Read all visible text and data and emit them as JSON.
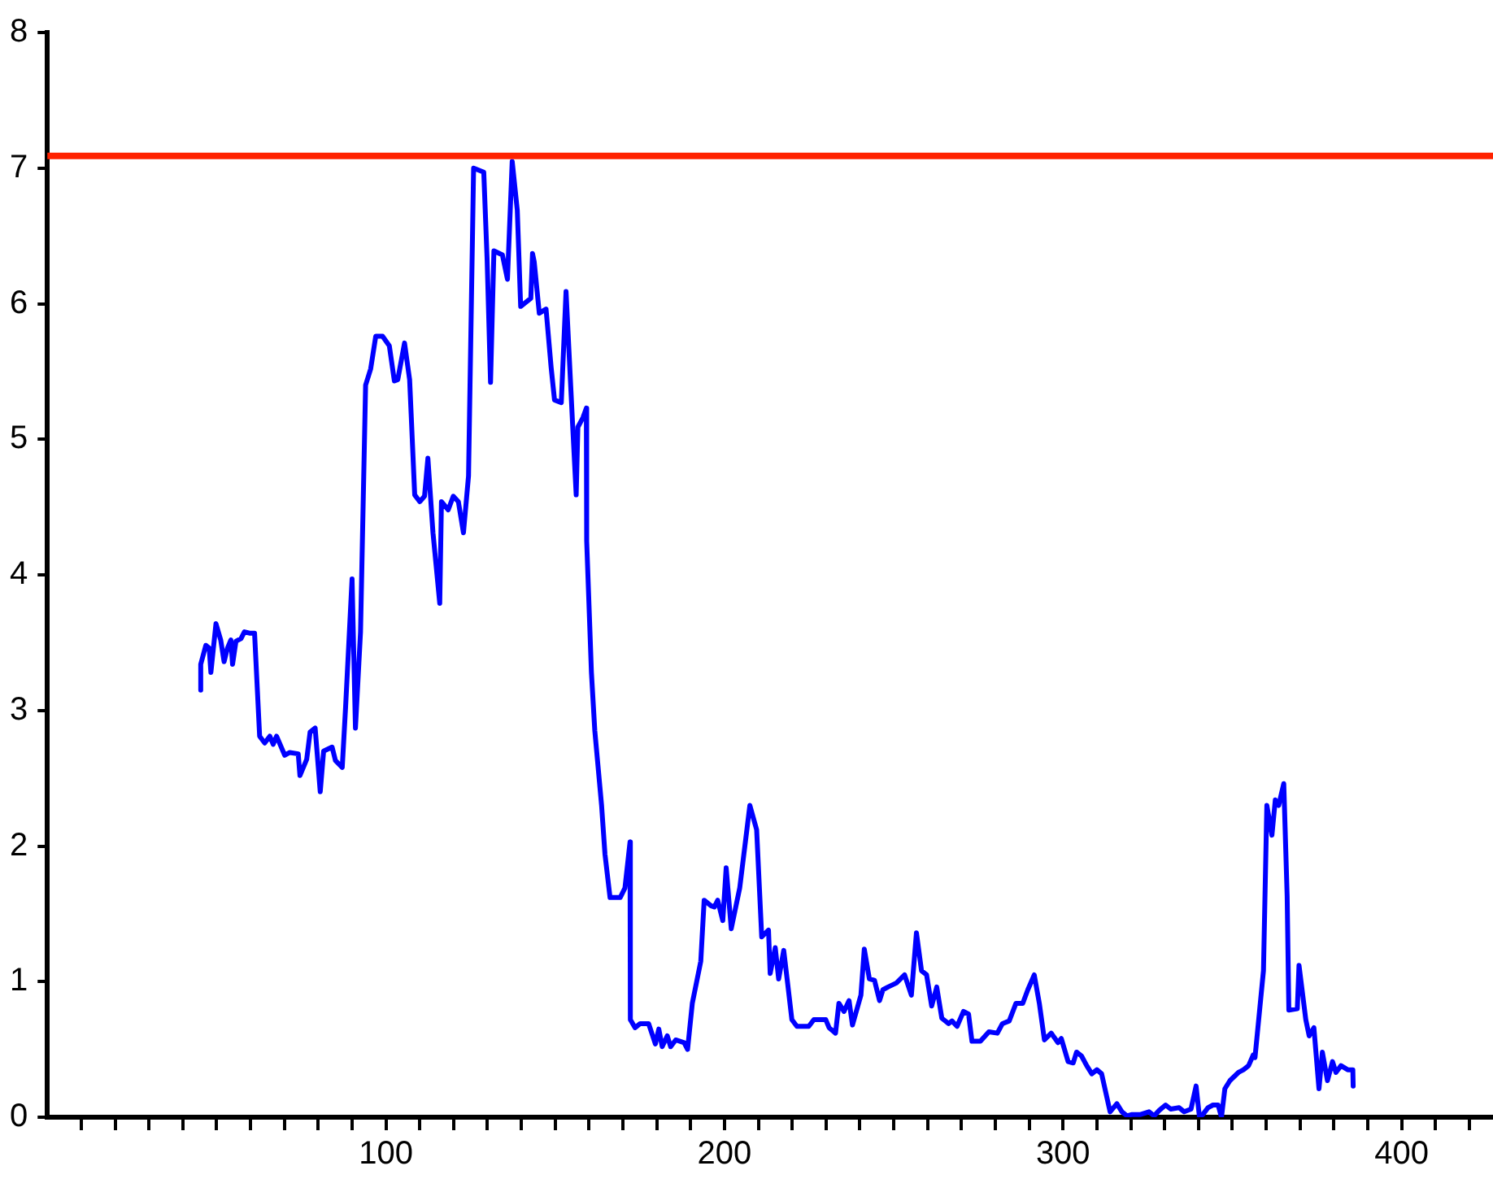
{
  "chart_data": {
    "type": "line",
    "xlim": [
      0,
      427
    ],
    "ylim": [
      0,
      8
    ],
    "yticks": [
      0,
      1,
      2,
      3,
      4,
      5,
      6,
      7,
      8
    ],
    "xticks": [
      {
        "value": 10,
        "label": null
      },
      {
        "value": 20,
        "label": null
      },
      {
        "value": 30,
        "label": null
      },
      {
        "value": 40,
        "label": null
      },
      {
        "value": 50,
        "label": null
      },
      {
        "value": 60,
        "label": null
      },
      {
        "value": 70,
        "label": null
      },
      {
        "value": 80,
        "label": null
      },
      {
        "value": 90,
        "label": null
      },
      100,
      {
        "value": 110,
        "label": null
      },
      {
        "value": 120,
        "label": null
      },
      {
        "value": 130,
        "label": null
      },
      {
        "value": 140,
        "label": null
      },
      {
        "value": 150,
        "label": null
      },
      {
        "value": 160,
        "label": null
      },
      {
        "value": 170,
        "label": null
      },
      {
        "value": 180,
        "label": null
      },
      {
        "value": 190,
        "label": null
      },
      200,
      {
        "value": 210,
        "label": null
      },
      {
        "value": 220,
        "label": null
      },
      {
        "value": 230,
        "label": null
      },
      {
        "value": 240,
        "label": null
      },
      {
        "value": 250,
        "label": null
      },
      {
        "value": 260,
        "label": null
      },
      {
        "value": 270,
        "label": null
      },
      {
        "value": 280,
        "label": null
      },
      {
        "value": 290,
        "label": null
      },
      300,
      {
        "value": 310,
        "label": null
      },
      {
        "value": 320,
        "label": null
      },
      {
        "value": 330,
        "label": null
      },
      {
        "value": 340,
        "label": null
      },
      {
        "value": 350,
        "label": null
      },
      {
        "value": 360,
        "label": null
      },
      {
        "value": 370,
        "label": null
      },
      {
        "value": 380,
        "label": null
      },
      {
        "value": 390,
        "label": null
      },
      400,
      {
        "value": 410,
        "label": null
      },
      {
        "value": 420,
        "label": null
      }
    ],
    "grid": false,
    "legend": false,
    "marker": "none",
    "line_style": "solid",
    "ref_lines": [
      {
        "axis": "y",
        "value": 7.09,
        "color": "#ff2200",
        "line_style": "solid"
      }
    ],
    "series": [
      {
        "color": "#0000ff",
        "x": [
          45.3,
          45.3,
          46.8,
          47.8,
          48.3,
          49.8,
          51.2,
          52.2,
          53.2,
          54.2,
          54.7,
          55.7,
          57.2,
          58.2,
          59.7,
          61.2,
          62.7,
          64.2,
          65.7,
          66.7,
          67.7,
          70.1,
          71.6,
          74.1,
          74.6,
          76.6,
          77.6,
          79.1,
          80.6,
          81.6,
          84.1,
          85.1,
          87.1,
          88.1,
          90.0,
          91.0,
          92.5,
          94.0,
          95.5,
          97.0,
          99.0,
          101.0,
          102.5,
          103.5,
          105.5,
          107.0,
          107.5,
          108.5,
          110.0,
          111.4,
          112.4,
          113.9,
          115.9,
          116.4,
          118.4,
          119.9,
          121.4,
          122.9,
          124.4,
          125.9,
          128.9,
          129.9,
          130.9,
          131.9,
          134.4,
          135.9,
          137.3,
          138.8,
          139.8,
          142.8,
          143.3,
          143.8,
          145.3,
          147.3,
          148.8,
          149.8,
          151.8,
          153.2,
          155.2,
          156.2,
          156.7,
          158.2,
          159.2,
          159.3,
          160.7,
          161.7,
          163.7,
          164.7,
          166.2,
          167.7,
          169.2,
          170.6,
          172.1,
          172.2,
          173.6,
          175.1,
          177.6,
          179.6,
          180.6,
          181.6,
          183.1,
          184.1,
          185.6,
          188.1,
          189.1,
          190.5,
          193.0,
          194.0,
          196.0,
          197.0,
          198.0,
          199.5,
          200.5,
          202.0,
          204.5,
          207.5,
          209.5,
          211.0,
          213.0,
          213.5,
          215.0,
          216.0,
          217.5,
          218.5,
          219.9,
          221.4,
          224.9,
          226.4,
          229.9,
          230.9,
          232.8,
          233.8,
          235.3,
          236.8,
          237.8,
          240.3,
          241.3,
          242.8,
          244.3,
          245.8,
          246.8,
          248.3,
          250.8,
          253.2,
          255.2,
          256.7,
          258.2,
          259.7,
          261.2,
          262.7,
          264.2,
          266.2,
          267.2,
          268.7,
          270.6,
          272.1,
          273.1,
          275.6,
          278.1,
          280.6,
          282.1,
          284.1,
          286.1,
          288.1,
          289.6,
          291.5,
          293.0,
          294.5,
          296.5,
          298.5,
          299.5,
          301.5,
          303.0,
          304.0,
          305.5,
          307.0,
          308.5,
          310.0,
          311.4,
          313.9,
          315.9,
          317.4,
          318.9,
          320.4,
          322.9,
          325.4,
          326.9,
          328.4,
          330.3,
          331.8,
          334.3,
          335.8,
          337.8,
          339.3,
          340.3,
          341.3,
          342.8,
          344.3,
          345.8,
          346.8,
          347.8,
          349.3,
          351.8,
          353.3,
          354.8,
          356.2,
          356.7,
          359.2,
          360.2,
          361.7,
          362.7,
          363.7,
          365.2,
          366.2,
          366.7,
          369.2,
          369.7,
          371.7,
          372.7,
          374.1,
          375.6,
          376.6,
          378.1,
          379.6,
          380.6,
          382.1,
          384.1,
          385.6,
          385.7
        ],
        "values": [
          3.15,
          3.34,
          3.48,
          3.46,
          3.28,
          3.64,
          3.52,
          3.36,
          3.46,
          3.52,
          3.34,
          3.51,
          3.53,
          3.58,
          3.57,
          3.57,
          2.81,
          2.76,
          2.81,
          2.75,
          2.81,
          2.67,
          2.69,
          2.68,
          2.52,
          2.64,
          2.84,
          2.87,
          2.4,
          2.7,
          2.73,
          2.63,
          2.58,
          3.03,
          3.97,
          2.87,
          3.58,
          5.4,
          5.52,
          5.76,
          5.76,
          5.69,
          5.43,
          5.44,
          5.71,
          5.44,
          5.16,
          4.59,
          4.54,
          4.58,
          4.86,
          4.31,
          3.79,
          4.54,
          4.48,
          4.58,
          4.54,
          4.31,
          4.73,
          7.0,
          6.97,
          6.32,
          5.42,
          6.39,
          6.36,
          6.18,
          7.05,
          6.69,
          5.98,
          6.04,
          6.37,
          6.31,
          5.93,
          5.96,
          5.53,
          5.29,
          5.27,
          6.09,
          5.08,
          4.59,
          5.09,
          5.16,
          5.23,
          4.25,
          3.28,
          2.85,
          2.3,
          1.94,
          1.62,
          1.62,
          1.62,
          1.69,
          2.03,
          0.72,
          0.66,
          0.69,
          0.69,
          0.54,
          0.65,
          0.52,
          0.6,
          0.52,
          0.57,
          0.55,
          0.5,
          0.84,
          1.15,
          1.6,
          1.56,
          1.55,
          1.6,
          1.45,
          1.84,
          1.39,
          1.69,
          2.3,
          2.12,
          1.33,
          1.38,
          1.06,
          1.25,
          1.02,
          1.23,
          1.02,
          0.72,
          0.67,
          0.67,
          0.72,
          0.72,
          0.66,
          0.62,
          0.84,
          0.78,
          0.86,
          0.68,
          0.9,
          1.24,
          1.02,
          1.01,
          0.86,
          0.94,
          0.96,
          0.99,
          1.05,
          0.9,
          1.36,
          1.08,
          1.05,
          0.82,
          0.96,
          0.73,
          0.69,
          0.71,
          0.67,
          0.78,
          0.76,
          0.56,
          0.56,
          0.63,
          0.62,
          0.69,
          0.71,
          0.84,
          0.84,
          0.94,
          1.05,
          0.84,
          0.57,
          0.62,
          0.55,
          0.58,
          0.41,
          0.4,
          0.48,
          0.45,
          0.38,
          0.32,
          0.35,
          0.32,
          0.04,
          0.1,
          0.04,
          0.01,
          0.02,
          0.02,
          0.04,
          0.01,
          0.05,
          0.09,
          0.06,
          0.07,
          0.04,
          0.06,
          0.23,
          0,
          0.02,
          0.07,
          0.09,
          0.09,
          0,
          0.21,
          0.27,
          0.33,
          0.35,
          0.38,
          0.46,
          0.44,
          1.08,
          2.3,
          2.08,
          2.34,
          2.3,
          2.46,
          1.63,
          0.79,
          0.8,
          1.12,
          0.72,
          0.6,
          0.66,
          0.21,
          0.48,
          0.27,
          0.41,
          0.33,
          0.38,
          0.35,
          0.35,
          0.23
        ]
      }
    ]
  }
}
